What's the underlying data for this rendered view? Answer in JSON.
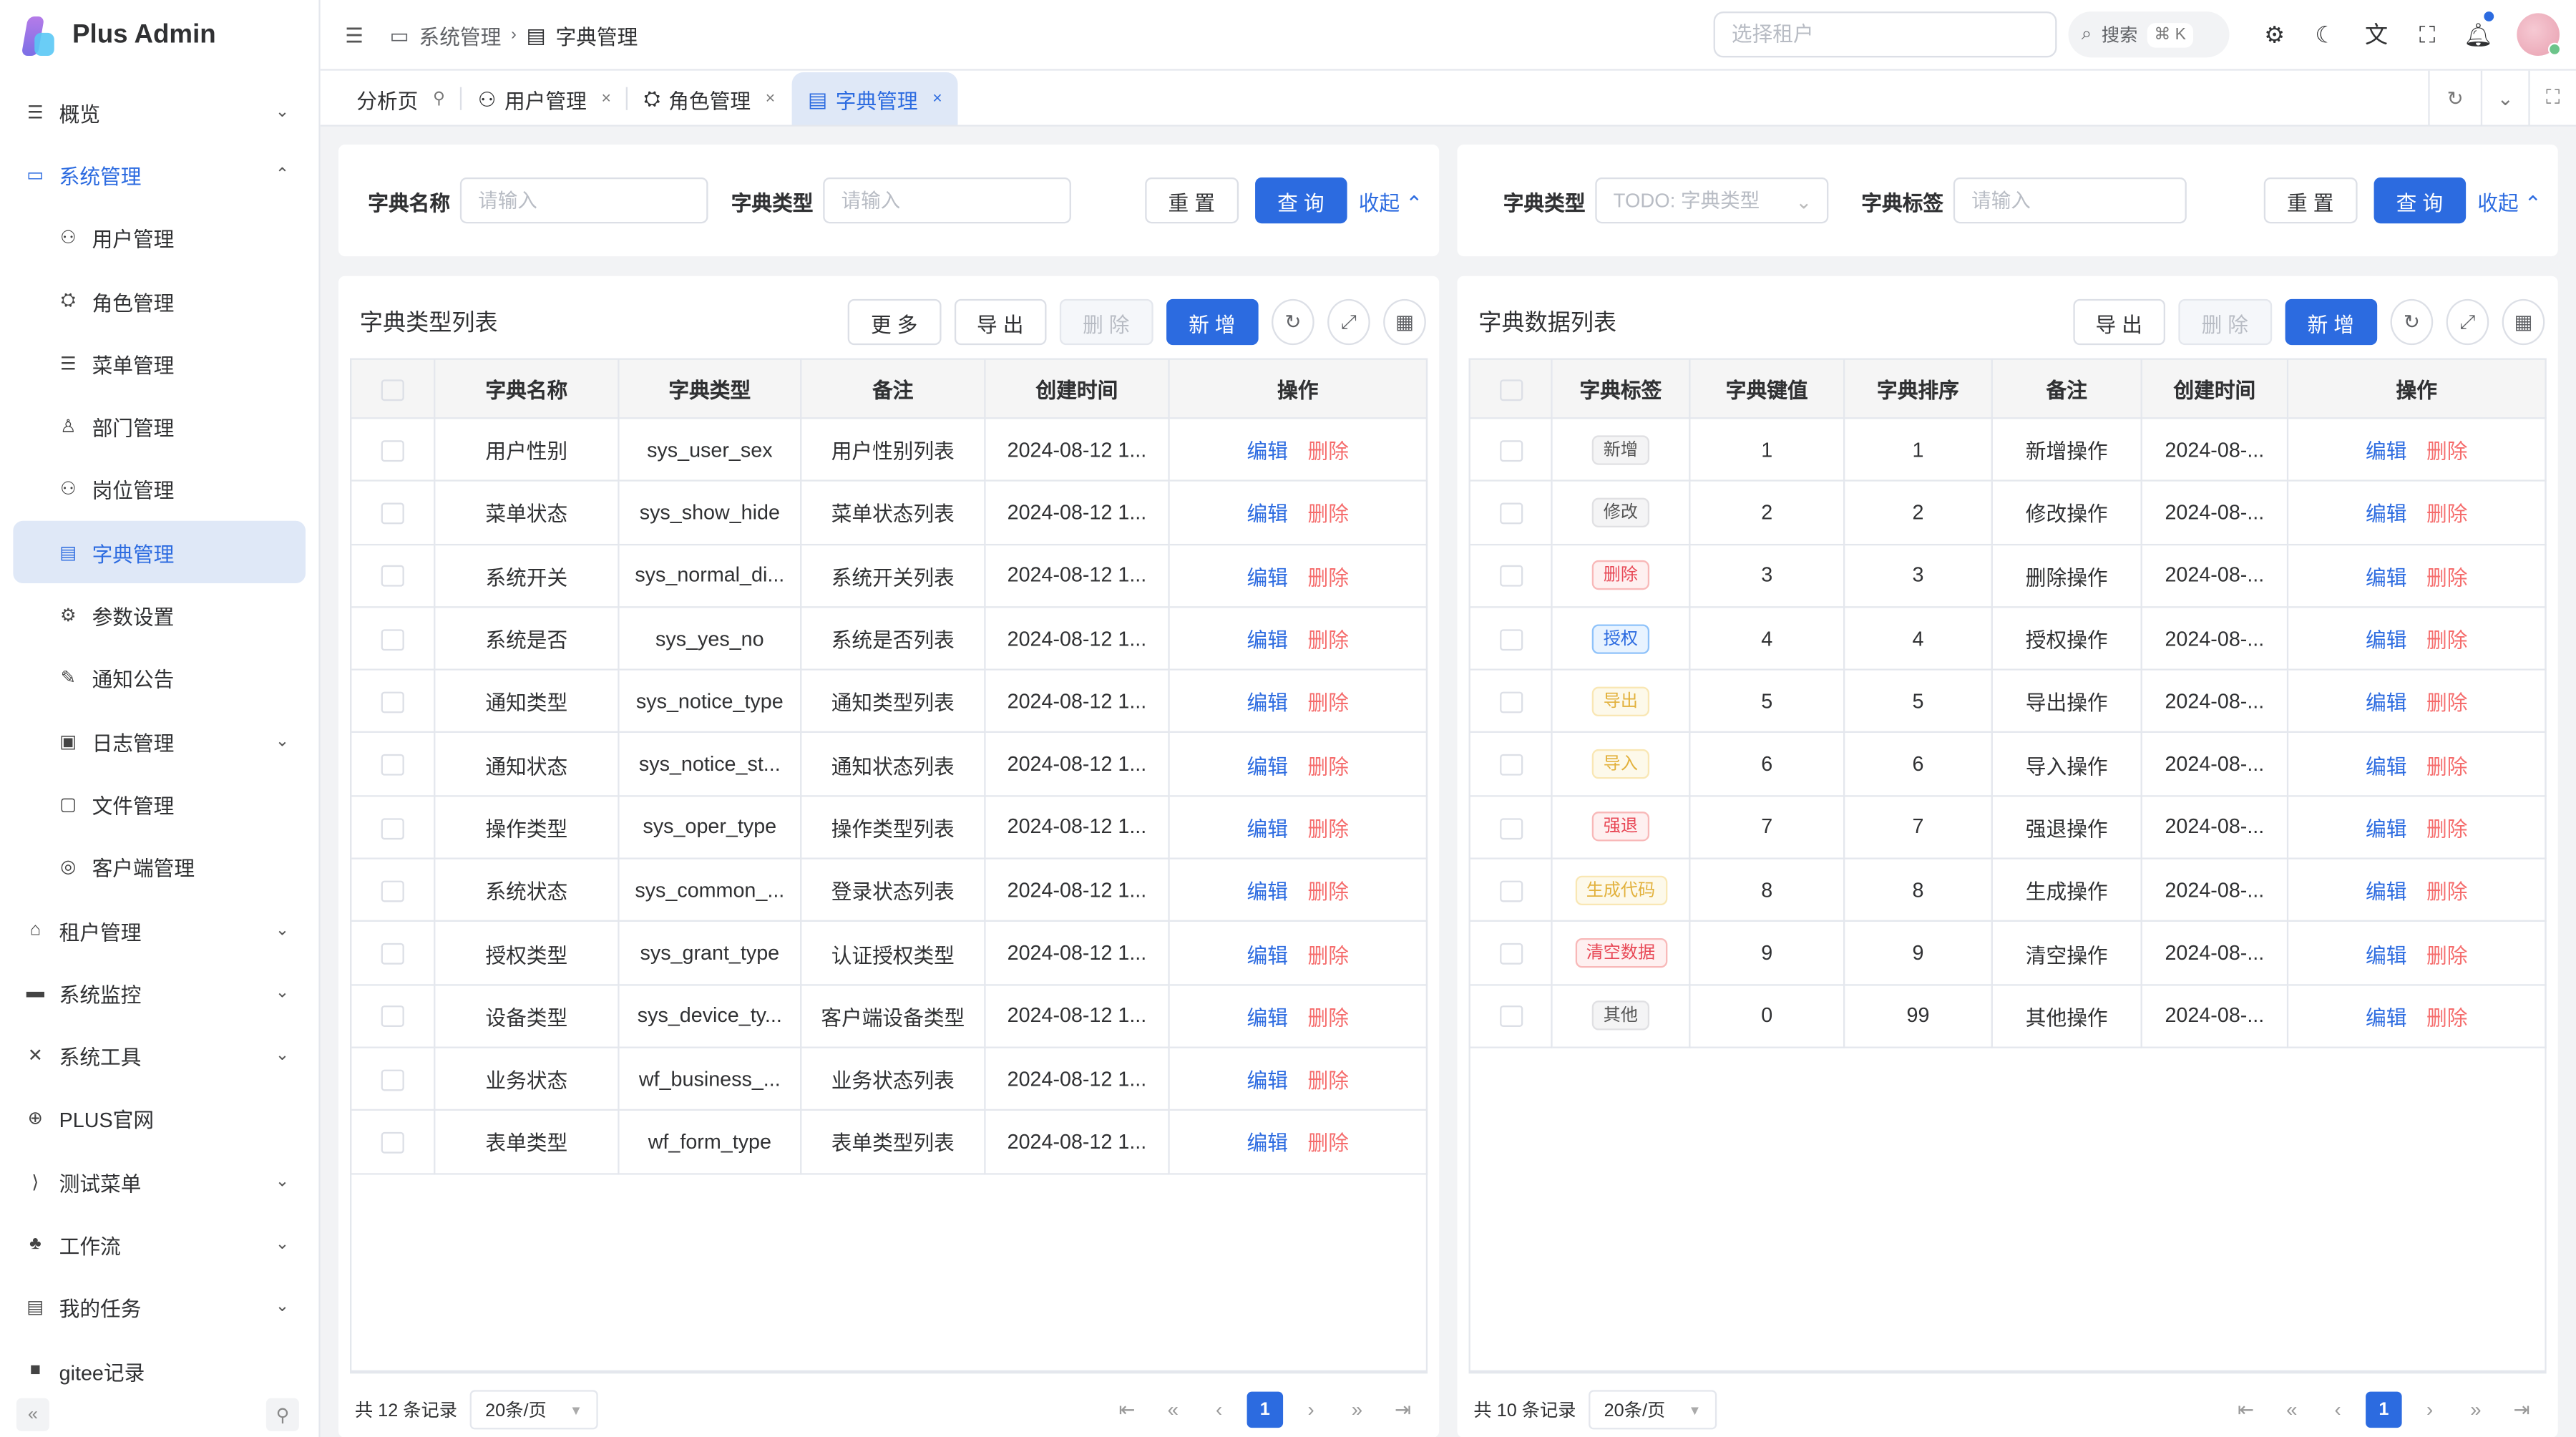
{
  "app": {
    "title": "Plus Admin"
  },
  "sidebar": {
    "items": [
      {
        "label": "概览",
        "icon": "menu-icon",
        "glyph": "☰",
        "chevron": "⌄",
        "sub": false
      },
      {
        "label": "系统管理",
        "icon": "monitor-icon",
        "glyph": "▭",
        "chevron": "⌃",
        "sub": false,
        "open": true
      },
      {
        "label": "用户管理",
        "icon": "user-icon",
        "glyph": "⚇",
        "sub": true
      },
      {
        "label": "角色管理",
        "icon": "role-icon",
        "glyph": "⛭",
        "sub": true
      },
      {
        "label": "菜单管理",
        "icon": "list-icon",
        "glyph": "☰",
        "sub": true
      },
      {
        "label": "部门管理",
        "icon": "tree-icon",
        "glyph": "♙",
        "sub": true
      },
      {
        "label": "岗位管理",
        "icon": "post-icon",
        "glyph": "⚇",
        "sub": true
      },
      {
        "label": "字典管理",
        "icon": "dict-icon",
        "glyph": "▤",
        "sub": true,
        "active": true
      },
      {
        "label": "参数设置",
        "icon": "gear-icon",
        "glyph": "⚙",
        "sub": true
      },
      {
        "label": "通知公告",
        "icon": "edit-icon",
        "glyph": "✎",
        "sub": true
      },
      {
        "label": "日志管理",
        "icon": "log-icon",
        "glyph": "▣",
        "chevron": "⌄",
        "sub": true
      },
      {
        "label": "文件管理",
        "icon": "folder-icon",
        "glyph": "▢",
        "sub": true
      },
      {
        "label": "客户端管理",
        "icon": "client-icon",
        "glyph": "◎",
        "sub": true
      },
      {
        "label": "租户管理",
        "icon": "home-icon",
        "glyph": "⌂",
        "chevron": "⌄",
        "sub": false
      },
      {
        "label": "系统监控",
        "icon": "monitor-icon",
        "glyph": "▬",
        "chevron": "⌄",
        "sub": false
      },
      {
        "label": "系统工具",
        "icon": "tools-icon",
        "glyph": "✕",
        "chevron": "⌄",
        "sub": false
      },
      {
        "label": "PLUS官网",
        "icon": "plus-circle-icon",
        "glyph": "⊕",
        "sub": false
      },
      {
        "label": "测试菜单",
        "icon": "vscode-icon",
        "glyph": "⟩",
        "chevron": "⌄",
        "sub": false
      },
      {
        "label": "工作流",
        "icon": "org-icon",
        "glyph": "♣",
        "chevron": "⌄",
        "sub": false
      },
      {
        "label": "我的任务",
        "icon": "task-icon",
        "glyph": "▤",
        "chevron": "⌄",
        "sub": false
      },
      {
        "label": "gitee记录",
        "icon": "gitee-icon",
        "glyph": "■",
        "sub": false
      }
    ]
  },
  "header": {
    "breadcrumb": [
      "系统管理",
      "字典管理"
    ],
    "tenant_placeholder": "选择租户",
    "search_label": "搜索",
    "search_kbd": "⌘ K"
  },
  "tabs": [
    {
      "label": "分析页",
      "icon": "pin-icon",
      "glyph": "⚲"
    },
    {
      "label": "用户管理",
      "close": "×"
    },
    {
      "label": "角色管理",
      "close": "×"
    },
    {
      "label": "字典管理",
      "close": "×",
      "active": true
    }
  ],
  "left": {
    "query": {
      "name_label": "字典名称",
      "name_placeholder": "请输入",
      "type_label": "字典类型",
      "type_placeholder": "请输入",
      "reset": "重 置",
      "search": "查 询",
      "collapse": "收起"
    },
    "title": "字典类型列表",
    "buttons": {
      "more": "更 多",
      "export": "导 出",
      "delete": "删 除",
      "add": "新 增"
    },
    "columns": [
      "字典名称",
      "字典类型",
      "备注",
      "创建时间",
      "操作"
    ],
    "rows": [
      [
        "用户性别",
        "sys_user_sex",
        "用户性别列表",
        "2024-08-12 1..."
      ],
      [
        "菜单状态",
        "sys_show_hide",
        "菜单状态列表",
        "2024-08-12 1..."
      ],
      [
        "系统开关",
        "sys_normal_di...",
        "系统开关列表",
        "2024-08-12 1..."
      ],
      [
        "系统是否",
        "sys_yes_no",
        "系统是否列表",
        "2024-08-12 1..."
      ],
      [
        "通知类型",
        "sys_notice_type",
        "通知类型列表",
        "2024-08-12 1..."
      ],
      [
        "通知状态",
        "sys_notice_st...",
        "通知状态列表",
        "2024-08-12 1..."
      ],
      [
        "操作类型",
        "sys_oper_type",
        "操作类型列表",
        "2024-08-12 1..."
      ],
      [
        "系统状态",
        "sys_common_...",
        "登录状态列表",
        "2024-08-12 1..."
      ],
      [
        "授权类型",
        "sys_grant_type",
        "认证授权类型",
        "2024-08-12 1..."
      ],
      [
        "设备类型",
        "sys_device_ty...",
        "客户端设备类型",
        "2024-08-12 1..."
      ],
      [
        "业务状态",
        "wf_business_...",
        "业务状态列表",
        "2024-08-12 1..."
      ],
      [
        "表单类型",
        "wf_form_type",
        "表单类型列表",
        "2024-08-12 1..."
      ]
    ],
    "edit": "编辑",
    "del": "删除",
    "total": "共 12 条记录",
    "page_size": "20条/页",
    "page": "1"
  },
  "right": {
    "query": {
      "type_label": "字典类型",
      "type_placeholder": "TODO: 字典类型",
      "tag_label": "字典标签",
      "tag_placeholder": "请输入",
      "reset": "重 置",
      "search": "查 询",
      "collapse": "收起"
    },
    "title": "字典数据列表",
    "buttons": {
      "export": "导 出",
      "delete": "删 除",
      "add": "新 增"
    },
    "columns": [
      "字典标签",
      "字典键值",
      "字典排序",
      "备注",
      "创建时间",
      "操作"
    ],
    "rows": [
      {
        "tag": "新增",
        "type": "default",
        "value": "1",
        "sort": "1",
        "remark": "新增操作",
        "time": "2024-08-..."
      },
      {
        "tag": "修改",
        "type": "default",
        "value": "2",
        "sort": "2",
        "remark": "修改操作",
        "time": "2024-08-..."
      },
      {
        "tag": "删除",
        "type": "danger",
        "value": "3",
        "sort": "3",
        "remark": "删除操作",
        "time": "2024-08-..."
      },
      {
        "tag": "授权",
        "type": "primary",
        "value": "4",
        "sort": "4",
        "remark": "授权操作",
        "time": "2024-08-..."
      },
      {
        "tag": "导出",
        "type": "warning",
        "value": "5",
        "sort": "5",
        "remark": "导出操作",
        "time": "2024-08-..."
      },
      {
        "tag": "导入",
        "type": "warning",
        "value": "6",
        "sort": "6",
        "remark": "导入操作",
        "time": "2024-08-..."
      },
      {
        "tag": "强退",
        "type": "danger",
        "value": "7",
        "sort": "7",
        "remark": "强退操作",
        "time": "2024-08-..."
      },
      {
        "tag": "生成代码",
        "type": "warning",
        "value": "8",
        "sort": "8",
        "remark": "生成操作",
        "time": "2024-08-..."
      },
      {
        "tag": "清空数据",
        "type": "danger",
        "value": "9",
        "sort": "9",
        "remark": "清空操作",
        "time": "2024-08-..."
      },
      {
        "tag": "其他",
        "type": "default",
        "value": "0",
        "sort": "99",
        "remark": "其他操作",
        "time": "2024-08-..."
      }
    ],
    "edit": "编辑",
    "del": "删除",
    "total": "共 10 条记录",
    "page_size": "20条/页",
    "page": "1"
  },
  "colors": {
    "primary": "#2c6be0",
    "danger": "#f56c6c",
    "active_bg": "#dfe8f7"
  }
}
